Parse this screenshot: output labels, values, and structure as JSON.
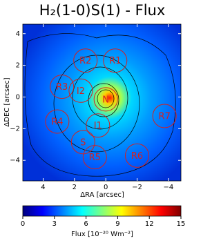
{
  "chart_data": {
    "type": "image-map",
    "title": "H₂(1-0)S(1) - Flux",
    "x_label": "ΔRA [arcsec]",
    "y_label": "ΔDEC [arcsec]",
    "xlim": [
      5.3,
      -4.8
    ],
    "ylim": [
      -5.3,
      4.6
    ],
    "xticks": [
      4,
      2,
      0,
      {
        "value": -2,
        "label": "−2"
      },
      {
        "value": -4,
        "label": "−4"
      }
    ],
    "yticks": [
      4,
      2,
      0,
      {
        "value": -2,
        "label": "−2"
      },
      {
        "value": -4,
        "label": "−4"
      }
    ],
    "colormap": "jet",
    "region_color": "#d42020",
    "region_radius": 0.75,
    "regions": [
      {
        "label": "R2",
        "x": 1.3,
        "y": 2.3
      },
      {
        "label": "R1",
        "x": -0.6,
        "y": 2.3
      },
      {
        "label": "R3",
        "x": 2.8,
        "y": 0.65
      },
      {
        "label": "I2",
        "x": 1.6,
        "y": 0.4
      },
      {
        "label": "N",
        "x": 0,
        "y": -0.15
      },
      {
        "label": "I1",
        "x": 0.5,
        "y": -1.8
      },
      {
        "label": "R4",
        "x": 3.1,
        "y": -1.55
      },
      {
        "label": "R7",
        "x": -3.75,
        "y": -1.2
      },
      {
        "label": "S",
        "x": 1.45,
        "y": -2.85
      },
      {
        "label": "R5",
        "x": 0.7,
        "y": -3.8
      },
      {
        "label": "R6",
        "x": -2.0,
        "y": -3.7
      }
    ],
    "colorbar": {
      "label": "Flux [10⁻²⁰ Wm⁻²]",
      "lim": [
        0,
        15
      ],
      "ticks": [
        0,
        3,
        6,
        9,
        12,
        15
      ]
    }
  }
}
